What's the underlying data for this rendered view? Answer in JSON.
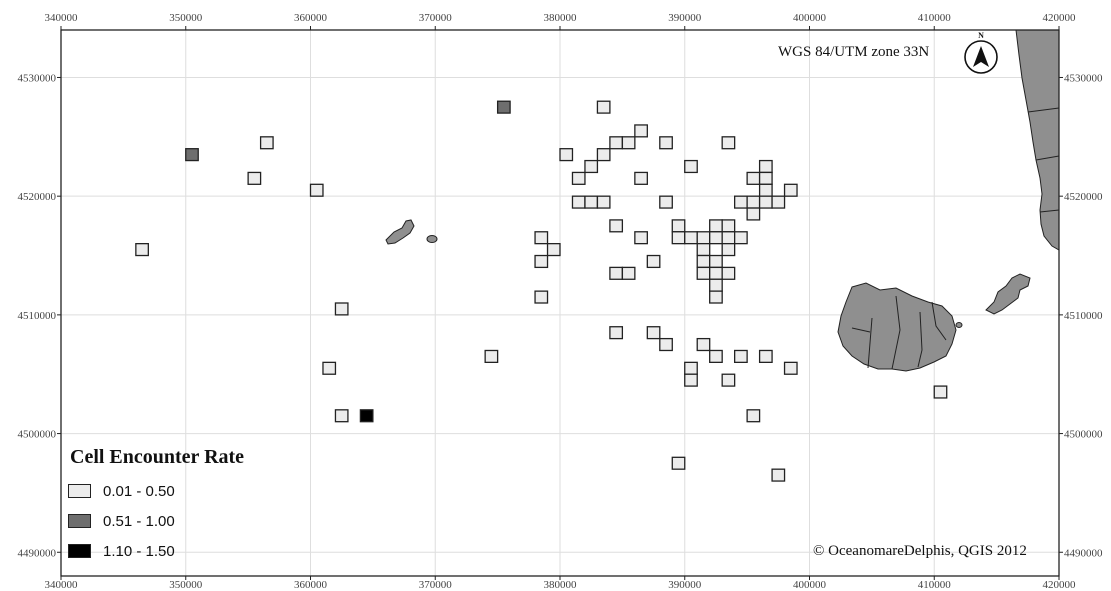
{
  "map": {
    "crs": "WGS 84/UTM zone 33N",
    "credit": "© OceanomareDelphis, QGIS 2012",
    "north_arrow_label": "N",
    "extent": {
      "x_min": 340000,
      "x_max": 420000,
      "y_min": 4488000,
      "y_max": 4534000
    },
    "x_ticks": [
      {
        "value": 340000,
        "label": "340000"
      },
      {
        "value": 350000,
        "label": "350000"
      },
      {
        "value": 360000,
        "label": "360000"
      },
      {
        "value": 370000,
        "label": "370000"
      },
      {
        "value": 380000,
        "label": "380000"
      },
      {
        "value": 390000,
        "label": "390000"
      },
      {
        "value": 400000,
        "label": "400000"
      },
      {
        "value": 410000,
        "label": "410000"
      },
      {
        "value": 420000,
        "label": "420000"
      }
    ],
    "y_ticks": [
      {
        "value": 4490000,
        "label": "4490000"
      },
      {
        "value": 4500000,
        "label": "4500000"
      },
      {
        "value": 4510000,
        "label": "4510000"
      },
      {
        "value": 4520000,
        "label": "4520000"
      },
      {
        "value": 4530000,
        "label": "4530000"
      }
    ],
    "cell_size_m": 1000,
    "colors": {
      "low": "#ececec",
      "mid": "#6e6e6e",
      "high": "#000000",
      "land": "#8f8f8f"
    },
    "cells": [
      {
        "x": 346500,
        "y": 4515500,
        "cls": "low"
      },
      {
        "x": 350500,
        "y": 4523500,
        "cls": "mid"
      },
      {
        "x": 355500,
        "y": 4521500,
        "cls": "low"
      },
      {
        "x": 356500,
        "y": 4524500,
        "cls": "low"
      },
      {
        "x": 360500,
        "y": 4520500,
        "cls": "low"
      },
      {
        "x": 361500,
        "y": 4505500,
        "cls": "low"
      },
      {
        "x": 362500,
        "y": 4510500,
        "cls": "low"
      },
      {
        "x": 362500,
        "y": 4501500,
        "cls": "low"
      },
      {
        "x": 364500,
        "y": 4501500,
        "cls": "high"
      },
      {
        "x": 374500,
        "y": 4506500,
        "cls": "low"
      },
      {
        "x": 375500,
        "y": 4527500,
        "cls": "mid"
      },
      {
        "x": 378500,
        "y": 4516500,
        "cls": "low"
      },
      {
        "x": 379500,
        "y": 4515500,
        "cls": "low"
      },
      {
        "x": 378500,
        "y": 4514500,
        "cls": "low"
      },
      {
        "x": 378500,
        "y": 4511500,
        "cls": "low"
      },
      {
        "x": 380500,
        "y": 4523500,
        "cls": "low"
      },
      {
        "x": 381500,
        "y": 4521500,
        "cls": "low"
      },
      {
        "x": 382500,
        "y": 4522500,
        "cls": "low"
      },
      {
        "x": 383500,
        "y": 4523500,
        "cls": "low"
      },
      {
        "x": 384500,
        "y": 4524500,
        "cls": "low"
      },
      {
        "x": 385500,
        "y": 4524500,
        "cls": "low"
      },
      {
        "x": 386500,
        "y": 4525500,
        "cls": "low"
      },
      {
        "x": 383500,
        "y": 4527500,
        "cls": "low"
      },
      {
        "x": 381500,
        "y": 4519500,
        "cls": "low"
      },
      {
        "x": 382500,
        "y": 4519500,
        "cls": "low"
      },
      {
        "x": 383500,
        "y": 4519500,
        "cls": "low"
      },
      {
        "x": 384500,
        "y": 4517500,
        "cls": "low"
      },
      {
        "x": 386500,
        "y": 4521500,
        "cls": "low"
      },
      {
        "x": 388500,
        "y": 4524500,
        "cls": "low"
      },
      {
        "x": 388500,
        "y": 4519500,
        "cls": "low"
      },
      {
        "x": 386500,
        "y": 4516500,
        "cls": "low"
      },
      {
        "x": 384500,
        "y": 4513500,
        "cls": "low"
      },
      {
        "x": 385500,
        "y": 4513500,
        "cls": "low"
      },
      {
        "x": 387500,
        "y": 4514500,
        "cls": "low"
      },
      {
        "x": 384500,
        "y": 4508500,
        "cls": "low"
      },
      {
        "x": 387500,
        "y": 4508500,
        "cls": "low"
      },
      {
        "x": 388500,
        "y": 4507500,
        "cls": "low"
      },
      {
        "x": 389500,
        "y": 4517500,
        "cls": "low"
      },
      {
        "x": 389500,
        "y": 4516500,
        "cls": "low"
      },
      {
        "x": 390500,
        "y": 4516500,
        "cls": "low"
      },
      {
        "x": 390500,
        "y": 4522500,
        "cls": "low"
      },
      {
        "x": 391500,
        "y": 4516500,
        "cls": "low"
      },
      {
        "x": 392500,
        "y": 4517500,
        "cls": "low"
      },
      {
        "x": 393500,
        "y": 4517500,
        "cls": "low"
      },
      {
        "x": 392500,
        "y": 4516500,
        "cls": "low"
      },
      {
        "x": 393500,
        "y": 4516500,
        "cls": "low"
      },
      {
        "x": 394500,
        "y": 4516500,
        "cls": "low"
      },
      {
        "x": 391500,
        "y": 4515500,
        "cls": "low"
      },
      {
        "x": 393500,
        "y": 4515500,
        "cls": "low"
      },
      {
        "x": 391500,
        "y": 4514500,
        "cls": "low"
      },
      {
        "x": 392500,
        "y": 4514500,
        "cls": "low"
      },
      {
        "x": 391500,
        "y": 4513500,
        "cls": "low"
      },
      {
        "x": 392500,
        "y": 4513500,
        "cls": "low"
      },
      {
        "x": 393500,
        "y": 4513500,
        "cls": "low"
      },
      {
        "x": 392500,
        "y": 4512500,
        "cls": "low"
      },
      {
        "x": 392500,
        "y": 4511500,
        "cls": "low"
      },
      {
        "x": 393500,
        "y": 4524500,
        "cls": "low"
      },
      {
        "x": 394500,
        "y": 4519500,
        "cls": "low"
      },
      {
        "x": 395500,
        "y": 4519500,
        "cls": "low"
      },
      {
        "x": 395500,
        "y": 4521500,
        "cls": "low"
      },
      {
        "x": 395500,
        "y": 4518500,
        "cls": "low"
      },
      {
        "x": 396500,
        "y": 4522500,
        "cls": "low"
      },
      {
        "x": 396500,
        "y": 4521500,
        "cls": "low"
      },
      {
        "x": 396500,
        "y": 4520500,
        "cls": "low"
      },
      {
        "x": 396500,
        "y": 4519500,
        "cls": "low"
      },
      {
        "x": 397500,
        "y": 4519500,
        "cls": "low"
      },
      {
        "x": 398500,
        "y": 4520500,
        "cls": "low"
      },
      {
        "x": 391500,
        "y": 4507500,
        "cls": "low"
      },
      {
        "x": 392500,
        "y": 4506500,
        "cls": "low"
      },
      {
        "x": 390500,
        "y": 4505500,
        "cls": "low"
      },
      {
        "x": 390500,
        "y": 4504500,
        "cls": "low"
      },
      {
        "x": 393500,
        "y": 4504500,
        "cls": "low"
      },
      {
        "x": 394500,
        "y": 4506500,
        "cls": "low"
      },
      {
        "x": 396500,
        "y": 4506500,
        "cls": "low"
      },
      {
        "x": 398500,
        "y": 4505500,
        "cls": "low"
      },
      {
        "x": 395500,
        "y": 4501500,
        "cls": "low"
      },
      {
        "x": 389500,
        "y": 4497500,
        "cls": "low"
      },
      {
        "x": 397500,
        "y": 4496500,
        "cls": "low"
      },
      {
        "x": 410500,
        "y": 4503500,
        "cls": "low"
      }
    ]
  },
  "legend": {
    "title": "Cell Encounter Rate",
    "items": [
      {
        "label": "0.01 - 0.50",
        "color": "#ececec"
      },
      {
        "label": "0.51 - 1.00",
        "color": "#6e6e6e"
      },
      {
        "label": "1.10 - 1.50",
        "color": "#000000"
      }
    ]
  }
}
